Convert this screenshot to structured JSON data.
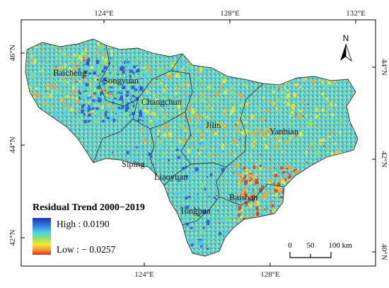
{
  "legend": {
    "title": "Residual Trend 2000−2019",
    "high_label": "High : 0.0190",
    "low_label": "Low : − 0.0257",
    "high_color": "#1f3fbf",
    "low_color": "#e8331c"
  },
  "north_arrow": {
    "label": "N",
    "icon": "north-arrow-icon"
  },
  "scale_bar": {
    "labels": [
      "0",
      "50",
      "100 km"
    ]
  },
  "graticule": {
    "top_ticks": [
      "124°E",
      "128°E",
      "132°E"
    ],
    "bottom_ticks": [
      "124°E",
      "128°E"
    ],
    "left_ticks": [
      "46°N",
      "44°N",
      "42°N"
    ],
    "right_ticks": [
      "44°N",
      "42°N",
      "40°N"
    ]
  },
  "regions": [
    "Baicheng",
    "Songyuan",
    "Changchun",
    "Jilin",
    "Yanbian",
    "Siping",
    "Liaoyuan",
    "Baishan",
    "Tonghua"
  ],
  "colors": {
    "blue": "#2a4fd6",
    "cyan": "#4fd2e8",
    "green": "#7fe07a",
    "yellow": "#f2e832",
    "orange": "#f3a23a",
    "red": "#e8331c"
  }
}
